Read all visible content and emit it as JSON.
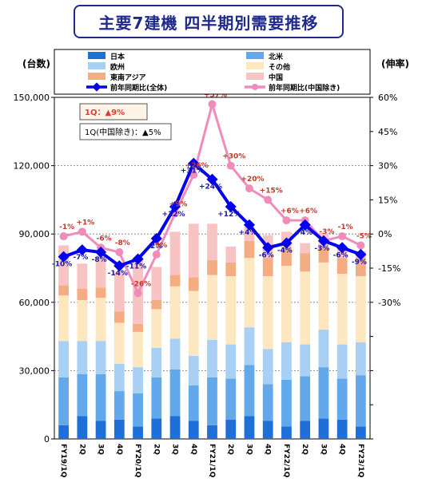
{
  "title": "主要7建機 四半期別需要推移",
  "chart_data": {
    "type": "bar",
    "stacked": true,
    "y_left_label": "(台数)",
    "y_right_label": "(伸率)",
    "ylim_left": [
      0,
      150000
    ],
    "ylim_right": [
      -90,
      60
    ],
    "y_left_ticks": [
      "0",
      "30,000",
      "60,000",
      "90,000",
      "120,000",
      "150,000"
    ],
    "y_right_ticks": [
      "-30%",
      "-15%",
      "0%",
      "15%",
      "30%",
      "45%",
      "60%"
    ],
    "categories": [
      "FY19/1Q",
      "2Q",
      "3Q",
      "4Q",
      "FY20/1Q",
      "2Q",
      "3Q",
      "4Q",
      "FY21/1Q",
      "2Q",
      "3Q",
      "4Q",
      "FY22/1Q",
      "2Q",
      "3Q",
      "4Q",
      "FY23/1Q"
    ],
    "series": [
      {
        "name": "日本",
        "color": "#1f6fd8",
        "values": [
          6000,
          10000,
          8000,
          8500,
          5500,
          9000,
          10000,
          8000,
          6000,
          8500,
          10000,
          8000,
          5500,
          8000,
          9000,
          8500,
          5500
        ]
      },
      {
        "name": "北米",
        "color": "#62a8ea",
        "values": [
          21000,
          18500,
          20500,
          12500,
          14500,
          18000,
          20500,
          15500,
          21000,
          18000,
          22500,
          16000,
          20500,
          19500,
          22500,
          18000,
          22500
        ]
      },
      {
        "name": "欧州",
        "color": "#a8d0f5",
        "values": [
          16000,
          14500,
          14500,
          12000,
          11500,
          13000,
          13500,
          13000,
          16500,
          15000,
          16500,
          15500,
          16500,
          14000,
          16500,
          15000,
          14500
        ]
      },
      {
        "name": "その他",
        "color": "#fde7c0",
        "values": [
          20000,
          18000,
          19000,
          18000,
          15500,
          17000,
          23000,
          28500,
          28500,
          30000,
          30500,
          32000,
          33500,
          32000,
          29500,
          31000,
          29000
        ]
      },
      {
        "name": "東南アジア",
        "color": "#f4ad82",
        "values": [
          4500,
          5000,
          4500,
          5000,
          3500,
          4000,
          5000,
          6000,
          6500,
          6000,
          7500,
          8000,
          8000,
          8000,
          7000,
          7000,
          8000
        ]
      },
      {
        "name": "中国",
        "color": "#f7c3c3",
        "values": [
          17500,
          11000,
          14000,
          17500,
          29000,
          14500,
          19000,
          23500,
          16000,
          7000,
          6000,
          10000,
          7000,
          4500,
          6000,
          4000,
          3000
        ]
      }
    ],
    "lines": [
      {
        "name": "前年同期比(全体)",
        "color": "#0000ee",
        "values": [
          -10,
          -7,
          -8,
          -14,
          -11,
          -2,
          12,
          31,
          24,
          12,
          4,
          -6,
          -4,
          4,
          -3,
          -6,
          -9
        ],
        "labels": [
          "-10%",
          "-7%",
          "-8%",
          "-14%",
          "-11%",
          "-2%",
          "+12%",
          "+31%",
          "+24%",
          "+12%",
          "+4%",
          "-6%",
          "-4%",
          "+4%",
          "-3%",
          "-6%",
          "-9%"
        ]
      },
      {
        "name": "前年同期比(中国除き)",
        "color": "#f08cba",
        "values": [
          -1,
          1,
          -6,
          -8,
          -26,
          -9,
          9,
          26,
          57,
          30,
          20,
          15,
          6,
          6,
          -3,
          -1,
          -5
        ],
        "labels": [
          "-1%",
          "+1%",
          "-6%",
          "-8%",
          "-26%",
          "-9%",
          "+9%",
          "+26%",
          "+57%",
          "+30%",
          "+20%",
          "+15%",
          "+6%",
          "+6%",
          "-3%",
          "-1%",
          "-5%"
        ]
      }
    ],
    "legend": [
      "日本",
      "北米",
      "欧州",
      "その他",
      "東南アジア",
      "中国",
      "前年同期比(全体)",
      "前年同期比(中国除き)"
    ],
    "legend_position": "top",
    "annotations": {
      "q1": "1Q：▲9%",
      "q1_ex_china": "1Q(中国除き)：▲5%"
    },
    "annotation_colors": {
      "q1": "#e53935",
      "q1_ex_china": "#000000"
    },
    "grid": "dotted horizontal"
  }
}
